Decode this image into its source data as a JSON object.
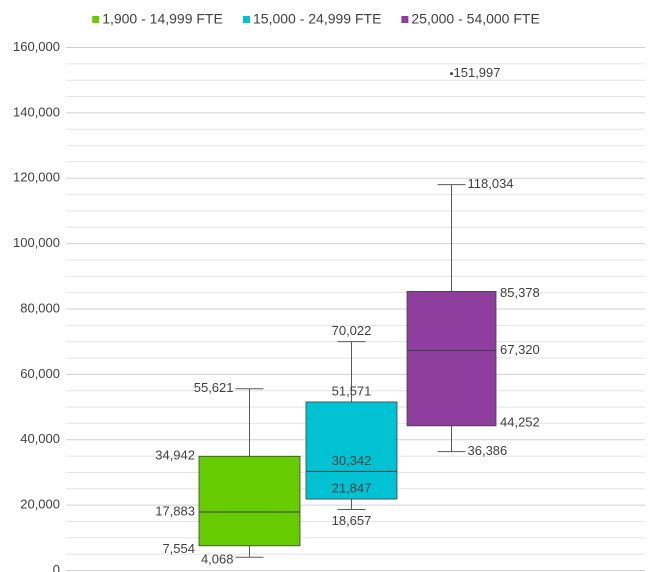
{
  "chart_data": {
    "type": "box",
    "ylim": [
      0,
      160000
    ],
    "yticks": [
      {
        "value": 0,
        "label": "0"
      },
      {
        "value": 20000,
        "label": "20,000"
      },
      {
        "value": 40000,
        "label": "40,000"
      },
      {
        "value": 60000,
        "label": "60,000"
      },
      {
        "value": 80000,
        "label": "80,000"
      },
      {
        "value": 100000,
        "label": "100,000"
      },
      {
        "value": 120000,
        "label": "120,000"
      },
      {
        "value": 140000,
        "label": "140,000"
      },
      {
        "value": 160000,
        "label": "160,000"
      }
    ],
    "grid": true,
    "legend": "top",
    "series": [
      {
        "name": "1,900 - 14,999 FTE",
        "color": "#66cc00",
        "values": [
          4068,
          7554,
          17883,
          34942,
          55621
        ],
        "value_labels": [
          "4,068",
          "7,554",
          "17,883",
          "34,942",
          "55,621"
        ],
        "outliers": [],
        "outlier_labels": []
      },
      {
        "name": "15,000 - 24,999 FTE",
        "color": "#00c2d2",
        "values": [
          18657,
          21847,
          30342,
          51571,
          70022
        ],
        "value_labels": [
          "18,657",
          "21,847",
          "30,342",
          "51,571",
          "70,022"
        ],
        "outliers": [],
        "outlier_labels": []
      },
      {
        "name": "25,000 - 54,000 FTE",
        "color": "#8e3f9e",
        "values": [
          36386,
          44252,
          67320,
          85378,
          118034
        ],
        "value_labels": [
          "36,386",
          "44,252",
          "67,320",
          "85,378",
          "118,034"
        ],
        "outliers": [
          151997
        ],
        "outlier_labels": [
          "151,997"
        ]
      }
    ]
  }
}
